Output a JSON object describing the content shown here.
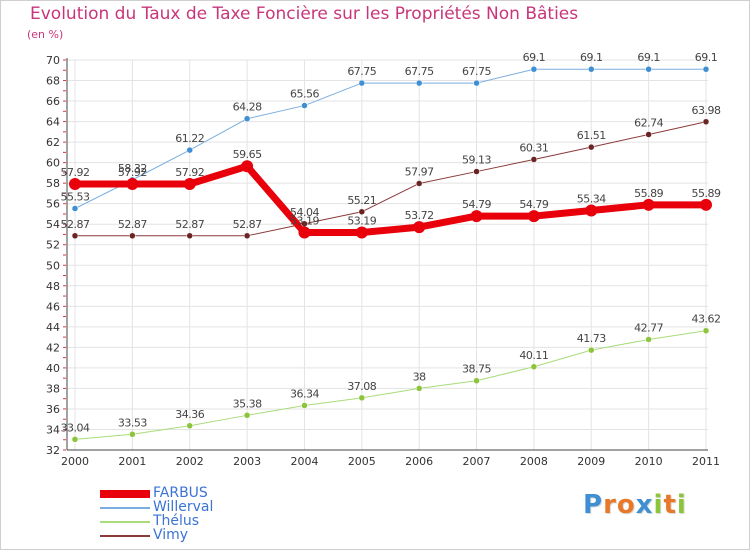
{
  "title": "Evolution du Taux de Taxe Foncière sur les Propriétés Non Bâties",
  "unit_label": "(en %)",
  "logo": {
    "letters": [
      "P",
      "r",
      "o",
      "x",
      "i",
      "t",
      "i"
    ],
    "colors": [
      "#3f8fd3",
      "#e8792a",
      "#e8792a",
      "#3f8fd3",
      "#8cc43b",
      "#e8792a",
      "#8cc43b"
    ]
  },
  "chart_data": {
    "type": "line",
    "x": [
      "2000",
      "2001",
      "2002",
      "2003",
      "2004",
      "2005",
      "2006",
      "2007",
      "2008",
      "2009",
      "2010",
      "2011"
    ],
    "ylim": [
      32,
      70
    ],
    "yticks": [
      32,
      34,
      36,
      38,
      40,
      42,
      44,
      46,
      48,
      50,
      52,
      54,
      56,
      58,
      60,
      62,
      64,
      66,
      68,
      70
    ],
    "grid": true,
    "legend_position": "bottom-left",
    "series": [
      {
        "name": "FARBUS",
        "color": "#e8000b",
        "dot": "#e8000b",
        "width": 7,
        "values": [
          57.92,
          57.92,
          57.92,
          59.65,
          53.19,
          53.19,
          53.72,
          54.79,
          54.79,
          55.34,
          55.89,
          55.89
        ],
        "labels": [
          "57.92",
          "57.92",
          "57.92",
          "59.65",
          "53.19",
          "53.19",
          "53.72",
          "54.79",
          "54.79",
          "55.34",
          "55.89",
          "55.89"
        ]
      },
      {
        "name": "Willerval",
        "color": "#7aaee0",
        "dot": "#3f8fd3",
        "width": 1,
        "values": [
          55.53,
          58.32,
          61.22,
          64.28,
          65.56,
          67.75,
          67.75,
          67.75,
          69.1,
          69.1,
          69.1,
          69.1
        ],
        "labels": [
          "55.53",
          "58.32",
          "61.22",
          "64.28",
          "65.56",
          "67.75",
          "67.75",
          "67.75",
          "69.1",
          "69.1",
          "69.1",
          "69.1"
        ]
      },
      {
        "name": "Thélus",
        "color": "#a9dc7a",
        "dot": "#8cc43b",
        "width": 1,
        "values": [
          33.04,
          33.53,
          34.36,
          35.38,
          36.34,
          37.08,
          38,
          38.75,
          40.11,
          41.73,
          42.77,
          43.62
        ],
        "labels": [
          "33.04",
          "33.53",
          "34.36",
          "35.38",
          "36.34",
          "37.08",
          "38",
          "38.75",
          "40.11",
          "41.73",
          "42.77",
          "43.62"
        ]
      },
      {
        "name": "Vimy",
        "color": "#8b3a3a",
        "dot": "#6b2424",
        "width": 1,
        "values": [
          52.87,
          52.87,
          52.87,
          52.87,
          54.04,
          55.21,
          57.97,
          59.13,
          60.31,
          61.51,
          62.74,
          63.98
        ],
        "labels": [
          "52.87",
          "52.87",
          "52.87",
          "52.87",
          "54.04",
          "55.21",
          "57.97",
          "59.13",
          "60.31",
          "61.51",
          "62.74",
          "63.98"
        ]
      }
    ]
  }
}
